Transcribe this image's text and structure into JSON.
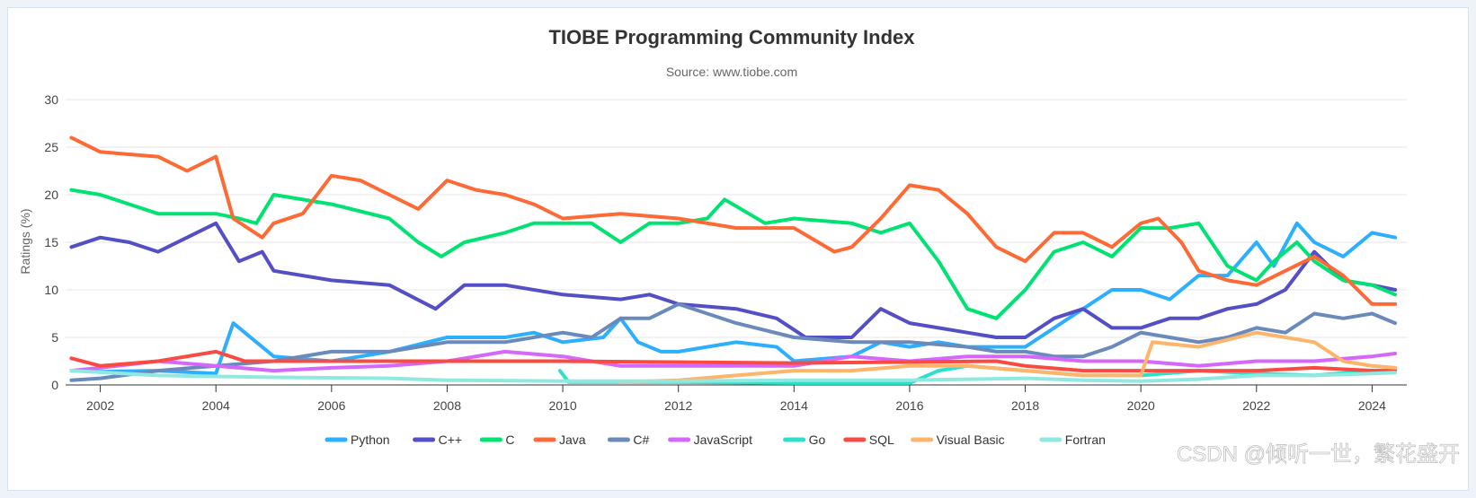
{
  "chart_data": {
    "type": "line",
    "title": "TIOBE Programming Community Index",
    "subtitle": "Source: www.tiobe.com",
    "ylabel": "Ratings (%)",
    "xlabel": "",
    "xlim": [
      2001.4,
      2024.6
    ],
    "ylim": [
      0,
      30
    ],
    "x_ticks": [
      "2002",
      "2004",
      "2006",
      "2008",
      "2010",
      "2012",
      "2014",
      "2016",
      "2018",
      "2020",
      "2022",
      "2024"
    ],
    "y_ticks": [
      "0",
      "5",
      "10",
      "15",
      "20",
      "25",
      "30"
    ],
    "grid": true,
    "legend_position": "bottom",
    "series": [
      {
        "name": "Python",
        "color": "#2caffe",
        "points": [
          [
            2001.5,
            1.5
          ],
          [
            2002,
            1.4
          ],
          [
            2003,
            1.5
          ],
          [
            2004,
            1.2
          ],
          [
            2004.3,
            6.5
          ],
          [
            2004.7,
            4.5
          ],
          [
            2005,
            3
          ],
          [
            2006,
            2.5
          ],
          [
            2007,
            3.5
          ],
          [
            2008,
            5
          ],
          [
            2009,
            5
          ],
          [
            2009.5,
            5.5
          ],
          [
            2010,
            4.5
          ],
          [
            2010.7,
            5
          ],
          [
            2011,
            7
          ],
          [
            2011.3,
            4.5
          ],
          [
            2011.7,
            3.5
          ],
          [
            2012,
            3.5
          ],
          [
            2013,
            4.5
          ],
          [
            2013.7,
            4
          ],
          [
            2014,
            2.5
          ],
          [
            2015,
            3
          ],
          [
            2015.5,
            4.5
          ],
          [
            2016,
            4
          ],
          [
            2016.5,
            4.5
          ],
          [
            2017,
            4
          ],
          [
            2017.5,
            4
          ],
          [
            2018,
            4
          ],
          [
            2018.5,
            6
          ],
          [
            2019,
            8
          ],
          [
            2019.5,
            10
          ],
          [
            2020,
            10
          ],
          [
            2020.5,
            9
          ],
          [
            2021,
            11.5
          ],
          [
            2021.5,
            11.5
          ],
          [
            2022,
            15
          ],
          [
            2022.3,
            12.5
          ],
          [
            2022.7,
            17
          ],
          [
            2023,
            15
          ],
          [
            2023.5,
            13.5
          ],
          [
            2024,
            16
          ],
          [
            2024.4,
            15.5
          ]
        ]
      },
      {
        "name": "C++",
        "color": "#544fc5",
        "points": [
          [
            2001.5,
            14.5
          ],
          [
            2002,
            15.5
          ],
          [
            2002.5,
            15
          ],
          [
            2003,
            14
          ],
          [
            2003.5,
            15.5
          ],
          [
            2004,
            17
          ],
          [
            2004.4,
            13
          ],
          [
            2004.8,
            14
          ],
          [
            2005,
            12
          ],
          [
            2006,
            11
          ],
          [
            2007,
            10.5
          ],
          [
            2007.8,
            8
          ],
          [
            2008.3,
            10.5
          ],
          [
            2009,
            10.5
          ],
          [
            2010,
            9.5
          ],
          [
            2011,
            9
          ],
          [
            2011.5,
            9.5
          ],
          [
            2012,
            8.5
          ],
          [
            2013,
            8
          ],
          [
            2013.7,
            7
          ],
          [
            2014.2,
            5
          ],
          [
            2015,
            5
          ],
          [
            2015.5,
            8
          ],
          [
            2016,
            6.5
          ],
          [
            2016.5,
            6
          ],
          [
            2017,
            5.5
          ],
          [
            2017.5,
            5
          ],
          [
            2018,
            5
          ],
          [
            2018.5,
            7
          ],
          [
            2019,
            8
          ],
          [
            2019.5,
            6
          ],
          [
            2020,
            6
          ],
          [
            2020.5,
            7
          ],
          [
            2021,
            7
          ],
          [
            2021.5,
            8
          ],
          [
            2022,
            8.5
          ],
          [
            2022.5,
            10
          ],
          [
            2023,
            14
          ],
          [
            2023.5,
            11
          ],
          [
            2024,
            10.5
          ],
          [
            2024.4,
            10
          ]
        ]
      },
      {
        "name": "C",
        "color": "#00e272",
        "points": [
          [
            2001.5,
            20.5
          ],
          [
            2002,
            20
          ],
          [
            2003,
            18
          ],
          [
            2004,
            18
          ],
          [
            2004.4,
            17.5
          ],
          [
            2004.7,
            17
          ],
          [
            2005,
            20
          ],
          [
            2006,
            19
          ],
          [
            2007,
            17.5
          ],
          [
            2007.5,
            15
          ],
          [
            2007.9,
            13.5
          ],
          [
            2008.3,
            15
          ],
          [
            2009,
            16
          ],
          [
            2009.5,
            17
          ],
          [
            2010,
            17
          ],
          [
            2010.5,
            17
          ],
          [
            2011,
            15
          ],
          [
            2011.5,
            17
          ],
          [
            2012,
            17
          ],
          [
            2012.5,
            17.5
          ],
          [
            2012.8,
            19.5
          ],
          [
            2013.5,
            17
          ],
          [
            2014,
            17.5
          ],
          [
            2015,
            17
          ],
          [
            2015.5,
            16
          ],
          [
            2016,
            17
          ],
          [
            2016.5,
            13
          ],
          [
            2017,
            8
          ],
          [
            2017.5,
            7
          ],
          [
            2018,
            10
          ],
          [
            2018.5,
            14
          ],
          [
            2019,
            15
          ],
          [
            2019.5,
            13.5
          ],
          [
            2020,
            16.5
          ],
          [
            2020.5,
            16.5
          ],
          [
            2021,
            17
          ],
          [
            2021.5,
            12.5
          ],
          [
            2022,
            11
          ],
          [
            2022.3,
            13
          ],
          [
            2022.7,
            15
          ],
          [
            2023,
            13
          ],
          [
            2023.5,
            11
          ],
          [
            2024,
            10.5
          ],
          [
            2024.4,
            9.5
          ]
        ]
      },
      {
        "name": "Java",
        "color": "#fe6a35",
        "points": [
          [
            2001.5,
            26
          ],
          [
            2002,
            24.5
          ],
          [
            2003,
            24
          ],
          [
            2003.5,
            22.5
          ],
          [
            2004,
            24
          ],
          [
            2004.3,
            17.5
          ],
          [
            2004.8,
            15.5
          ],
          [
            2005,
            17
          ],
          [
            2005.5,
            18
          ],
          [
            2006,
            22
          ],
          [
            2006.5,
            21.5
          ],
          [
            2007,
            20
          ],
          [
            2007.5,
            18.5
          ],
          [
            2008,
            21.5
          ],
          [
            2008.5,
            20.5
          ],
          [
            2009,
            20
          ],
          [
            2009.5,
            19
          ],
          [
            2010,
            17.5
          ],
          [
            2011,
            18
          ],
          [
            2012,
            17.5
          ],
          [
            2013,
            16.5
          ],
          [
            2013.5,
            16.5
          ],
          [
            2014,
            16.5
          ],
          [
            2014.7,
            14
          ],
          [
            2015,
            14.5
          ],
          [
            2015.5,
            17.5
          ],
          [
            2016,
            21
          ],
          [
            2016.5,
            20.5
          ],
          [
            2017,
            18
          ],
          [
            2017.5,
            14.5
          ],
          [
            2018,
            13
          ],
          [
            2018.5,
            16
          ],
          [
            2019,
            16
          ],
          [
            2019.5,
            14.5
          ],
          [
            2020,
            17
          ],
          [
            2020.3,
            17.5
          ],
          [
            2020.7,
            15
          ],
          [
            2021,
            12
          ],
          [
            2021.5,
            11
          ],
          [
            2022,
            10.5
          ],
          [
            2022.5,
            12
          ],
          [
            2023,
            13.5
          ],
          [
            2023.5,
            11.5
          ],
          [
            2024,
            8.5
          ],
          [
            2024.4,
            8.5
          ]
        ]
      },
      {
        "name": "C#",
        "color": "#6b8abc",
        "points": [
          [
            2001.5,
            0.5
          ],
          [
            2002,
            0.7
          ],
          [
            2003,
            1.5
          ],
          [
            2004,
            2
          ],
          [
            2005,
            2.5
          ],
          [
            2006,
            3.5
          ],
          [
            2007,
            3.5
          ],
          [
            2008,
            4.5
          ],
          [
            2009,
            4.5
          ],
          [
            2010,
            5.5
          ],
          [
            2010.5,
            5
          ],
          [
            2011,
            7
          ],
          [
            2011.5,
            7
          ],
          [
            2012,
            8.5
          ],
          [
            2012.5,
            7.5
          ],
          [
            2013,
            6.5
          ],
          [
            2014,
            5
          ],
          [
            2015,
            4.5
          ],
          [
            2016,
            4.5
          ],
          [
            2017,
            4
          ],
          [
            2017.5,
            3.5
          ],
          [
            2018,
            3.5
          ],
          [
            2018.5,
            3
          ],
          [
            2019,
            3
          ],
          [
            2019.5,
            4
          ],
          [
            2020,
            5.5
          ],
          [
            2020.5,
            5
          ],
          [
            2021,
            4.5
          ],
          [
            2021.5,
            5
          ],
          [
            2022,
            6
          ],
          [
            2022.5,
            5.5
          ],
          [
            2023,
            7.5
          ],
          [
            2023.5,
            7
          ],
          [
            2024,
            7.5
          ],
          [
            2024.4,
            6.5
          ]
        ]
      },
      {
        "name": "JavaScript",
        "color": "#d568fb",
        "points": [
          [
            2001.5,
            1.5
          ],
          [
            2002,
            1.8
          ],
          [
            2003,
            2.5
          ],
          [
            2004,
            2
          ],
          [
            2005,
            1.5
          ],
          [
            2006,
            1.8
          ],
          [
            2007,
            2
          ],
          [
            2008,
            2.5
          ],
          [
            2009,
            3.5
          ],
          [
            2010,
            3
          ],
          [
            2011,
            2
          ],
          [
            2012,
            2
          ],
          [
            2013,
            2
          ],
          [
            2014,
            2
          ],
          [
            2015,
            3
          ],
          [
            2016,
            2.5
          ],
          [
            2017,
            3
          ],
          [
            2018,
            3
          ],
          [
            2019,
            2.5
          ],
          [
            2020,
            2.5
          ],
          [
            2021,
            2
          ],
          [
            2022,
            2.5
          ],
          [
            2023,
            2.5
          ],
          [
            2024,
            3
          ],
          [
            2024.4,
            3.3
          ]
        ]
      },
      {
        "name": "Go",
        "color": "#2ee0ca",
        "points": [
          [
            2009.95,
            1.5
          ],
          [
            2010.1,
            0.3
          ],
          [
            2012,
            0.3
          ],
          [
            2014,
            0.2
          ],
          [
            2016,
            0.2
          ],
          [
            2016.5,
            1.5
          ],
          [
            2017,
            2
          ],
          [
            2018,
            1.5
          ],
          [
            2019,
            1
          ],
          [
            2020,
            1
          ],
          [
            2021,
            1.5
          ],
          [
            2022,
            1.2
          ],
          [
            2023,
            1
          ],
          [
            2024,
            1.5
          ],
          [
            2024.4,
            1.5
          ]
        ]
      },
      {
        "name": "SQL",
        "color": "#fa4b42",
        "points": [
          [
            2001.5,
            2.8
          ],
          [
            2002,
            2
          ],
          [
            2003,
            2.5
          ],
          [
            2004,
            3.5
          ],
          [
            2004.5,
            2.5
          ],
          [
            2010,
            2.5
          ],
          [
            2014,
            2.3
          ],
          [
            2017.5,
            2.5
          ],
          [
            2018,
            2
          ],
          [
            2019,
            1.5
          ],
          [
            2020,
            1.5
          ],
          [
            2021,
            1.5
          ],
          [
            2022,
            1.5
          ],
          [
            2023,
            1.8
          ],
          [
            2024,
            1.5
          ],
          [
            2024.4,
            1.5
          ]
        ]
      },
      {
        "name": "Visual Basic",
        "color": "#feb56a",
        "points": [
          [
            2011,
            0.3
          ],
          [
            2012,
            0.5
          ],
          [
            2013,
            1
          ],
          [
            2014,
            1.5
          ],
          [
            2015,
            1.5
          ],
          [
            2016,
            2
          ],
          [
            2017,
            2
          ],
          [
            2018,
            1.5
          ],
          [
            2019,
            1
          ],
          [
            2020,
            1
          ],
          [
            2020.2,
            4.5
          ],
          [
            2021,
            4
          ],
          [
            2022,
            5.5
          ],
          [
            2022.5,
            5
          ],
          [
            2023,
            4.5
          ],
          [
            2023.5,
            2.5
          ],
          [
            2024,
            2
          ],
          [
            2024.4,
            1.8
          ]
        ]
      },
      {
        "name": "Fortran",
        "color": "#91e8e1",
        "points": [
          [
            2001.5,
            1.5
          ],
          [
            2003,
            1
          ],
          [
            2005,
            0.8
          ],
          [
            2007,
            0.7
          ],
          [
            2008,
            0.5
          ],
          [
            2010,
            0.4
          ],
          [
            2012,
            0.4
          ],
          [
            2014,
            0.5
          ],
          [
            2016,
            0.5
          ],
          [
            2018,
            0.7
          ],
          [
            2019,
            0.5
          ],
          [
            2020,
            0.4
          ],
          [
            2021,
            0.6
          ],
          [
            2022,
            1
          ],
          [
            2023,
            1
          ],
          [
            2024,
            1.2
          ],
          [
            2024.4,
            1.3
          ]
        ]
      }
    ]
  },
  "watermark": "CSDN @倾听一世，繁花盛开"
}
